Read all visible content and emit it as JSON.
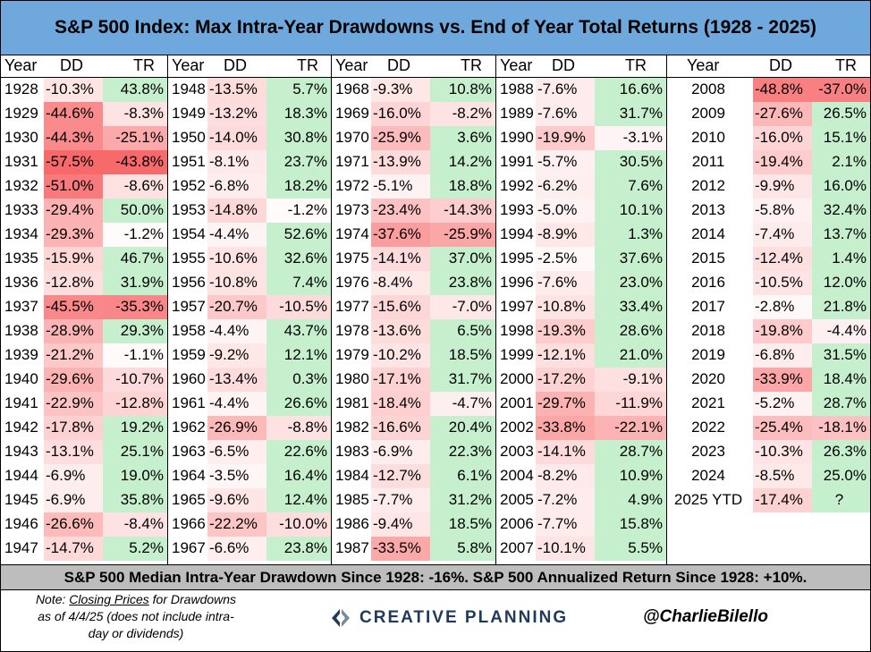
{
  "title": "S&P 500 Index: Max Intra-Year Drawdowns vs. End of Year Total Returns (1928 - 2025)",
  "headers": {
    "year": "Year",
    "dd": "DD",
    "tr": "TR"
  },
  "summary": "S&P 500 Median Intra-Year Drawdown Since 1928: -16%. S&P 500 Annualized Return Since 1928: +10%.",
  "note": {
    "prefix": "Note: ",
    "link": "Closing Prices",
    "line1_rest": " for Drawdowns",
    "line2": "as of 4/4/25 (does not include intra-",
    "line3": "day or dividends)"
  },
  "logo_text": "CREATIVE PLANNING",
  "handle": "@CharlieBilello",
  "colors": {
    "title_bg": "#6fa8dc",
    "footer_bg": "#bdbdbd",
    "negative": "#f8696b",
    "positive": "#63be7b",
    "logo": "#1f3a5c"
  },
  "chart_data": {
    "type": "table",
    "columns": [
      "Year",
      "DD",
      "TR"
    ],
    "rows": [
      {
        "year": "1928",
        "dd": -10.3,
        "tr": 43.8,
        "dd_text": "-10.3%",
        "tr_text": "43.8%"
      },
      {
        "year": "1929",
        "dd": -44.6,
        "tr": -8.3,
        "dd_text": "-44.6%",
        "tr_text": "-8.3%"
      },
      {
        "year": "1930",
        "dd": -44.3,
        "tr": -25.1,
        "dd_text": "-44.3%",
        "tr_text": "-25.1%"
      },
      {
        "year": "1931",
        "dd": -57.5,
        "tr": -43.8,
        "dd_text": "-57.5%",
        "tr_text": "-43.8%"
      },
      {
        "year": "1932",
        "dd": -51.0,
        "tr": -8.6,
        "dd_text": "-51.0%",
        "tr_text": "-8.6%"
      },
      {
        "year": "1933",
        "dd": -29.4,
        "tr": 50.0,
        "dd_text": "-29.4%",
        "tr_text": "50.0%"
      },
      {
        "year": "1934",
        "dd": -29.3,
        "tr": -1.2,
        "dd_text": "-29.3%",
        "tr_text": "-1.2%"
      },
      {
        "year": "1935",
        "dd": -15.9,
        "tr": 46.7,
        "dd_text": "-15.9%",
        "tr_text": "46.7%"
      },
      {
        "year": "1936",
        "dd": -12.8,
        "tr": 31.9,
        "dd_text": "-12.8%",
        "tr_text": "31.9%"
      },
      {
        "year": "1937",
        "dd": -45.5,
        "tr": -35.3,
        "dd_text": "-45.5%",
        "tr_text": "-35.3%"
      },
      {
        "year": "1938",
        "dd": -28.9,
        "tr": 29.3,
        "dd_text": "-28.9%",
        "tr_text": "29.3%"
      },
      {
        "year": "1939",
        "dd": -21.2,
        "tr": -1.1,
        "dd_text": "-21.2%",
        "tr_text": "-1.1%"
      },
      {
        "year": "1940",
        "dd": -29.6,
        "tr": -10.7,
        "dd_text": "-29.6%",
        "tr_text": "-10.7%"
      },
      {
        "year": "1941",
        "dd": -22.9,
        "tr": -12.8,
        "dd_text": "-22.9%",
        "tr_text": "-12.8%"
      },
      {
        "year": "1942",
        "dd": -17.8,
        "tr": 19.2,
        "dd_text": "-17.8%",
        "tr_text": "19.2%"
      },
      {
        "year": "1943",
        "dd": -13.1,
        "tr": 25.1,
        "dd_text": "-13.1%",
        "tr_text": "25.1%"
      },
      {
        "year": "1944",
        "dd": -6.9,
        "tr": 19.0,
        "dd_text": "-6.9%",
        "tr_text": "19.0%"
      },
      {
        "year": "1945",
        "dd": -6.9,
        "tr": 35.8,
        "dd_text": "-6.9%",
        "tr_text": "35.8%"
      },
      {
        "year": "1946",
        "dd": -26.6,
        "tr": -8.4,
        "dd_text": "-26.6%",
        "tr_text": "-8.4%"
      },
      {
        "year": "1947",
        "dd": -14.7,
        "tr": 5.2,
        "dd_text": "-14.7%",
        "tr_text": "5.2%"
      },
      {
        "year": "1948",
        "dd": -13.5,
        "tr": 5.7,
        "dd_text": "-13.5%",
        "tr_text": "5.7%"
      },
      {
        "year": "1949",
        "dd": -13.2,
        "tr": 18.3,
        "dd_text": "-13.2%",
        "tr_text": "18.3%"
      },
      {
        "year": "1950",
        "dd": -14.0,
        "tr": 30.8,
        "dd_text": "-14.0%",
        "tr_text": "30.8%"
      },
      {
        "year": "1951",
        "dd": -8.1,
        "tr": 23.7,
        "dd_text": "-8.1%",
        "tr_text": "23.7%"
      },
      {
        "year": "1952",
        "dd": -6.8,
        "tr": 18.2,
        "dd_text": "-6.8%",
        "tr_text": "18.2%"
      },
      {
        "year": "1953",
        "dd": -14.8,
        "tr": -1.2,
        "dd_text": "-14.8%",
        "tr_text": "-1.2%"
      },
      {
        "year": "1954",
        "dd": -4.4,
        "tr": 52.6,
        "dd_text": "-4.4%",
        "tr_text": "52.6%"
      },
      {
        "year": "1955",
        "dd": -10.6,
        "tr": 32.6,
        "dd_text": "-10.6%",
        "tr_text": "32.6%"
      },
      {
        "year": "1956",
        "dd": -10.8,
        "tr": 7.4,
        "dd_text": "-10.8%",
        "tr_text": "7.4%"
      },
      {
        "year": "1957",
        "dd": -20.7,
        "tr": -10.5,
        "dd_text": "-20.7%",
        "tr_text": "-10.5%"
      },
      {
        "year": "1958",
        "dd": -4.4,
        "tr": 43.7,
        "dd_text": "-4.4%",
        "tr_text": "43.7%"
      },
      {
        "year": "1959",
        "dd": -9.2,
        "tr": 12.1,
        "dd_text": "-9.2%",
        "tr_text": "12.1%"
      },
      {
        "year": "1960",
        "dd": -13.4,
        "tr": 0.3,
        "dd_text": "-13.4%",
        "tr_text": "0.3%"
      },
      {
        "year": "1961",
        "dd": -4.4,
        "tr": 26.6,
        "dd_text": "-4.4%",
        "tr_text": "26.6%"
      },
      {
        "year": "1962",
        "dd": -26.9,
        "tr": -8.8,
        "dd_text": "-26.9%",
        "tr_text": "-8.8%"
      },
      {
        "year": "1963",
        "dd": -6.5,
        "tr": 22.6,
        "dd_text": "-6.5%",
        "tr_text": "22.6%"
      },
      {
        "year": "1964",
        "dd": -3.5,
        "tr": 16.4,
        "dd_text": "-3.5%",
        "tr_text": "16.4%"
      },
      {
        "year": "1965",
        "dd": -9.6,
        "tr": 12.4,
        "dd_text": "-9.6%",
        "tr_text": "12.4%"
      },
      {
        "year": "1966",
        "dd": -22.2,
        "tr": -10.0,
        "dd_text": "-22.2%",
        "tr_text": "-10.0%"
      },
      {
        "year": "1967",
        "dd": -6.6,
        "tr": 23.8,
        "dd_text": "-6.6%",
        "tr_text": "23.8%"
      },
      {
        "year": "1968",
        "dd": -9.3,
        "tr": 10.8,
        "dd_text": "-9.3%",
        "tr_text": "10.8%"
      },
      {
        "year": "1969",
        "dd": -16.0,
        "tr": -8.2,
        "dd_text": "-16.0%",
        "tr_text": "-8.2%"
      },
      {
        "year": "1970",
        "dd": -25.9,
        "tr": 3.6,
        "dd_text": "-25.9%",
        "tr_text": "3.6%"
      },
      {
        "year": "1971",
        "dd": -13.9,
        "tr": 14.2,
        "dd_text": "-13.9%",
        "tr_text": "14.2%"
      },
      {
        "year": "1972",
        "dd": -5.1,
        "tr": 18.8,
        "dd_text": "-5.1%",
        "tr_text": "18.8%"
      },
      {
        "year": "1973",
        "dd": -23.4,
        "tr": -14.3,
        "dd_text": "-23.4%",
        "tr_text": "-14.3%"
      },
      {
        "year": "1974",
        "dd": -37.6,
        "tr": -25.9,
        "dd_text": "-37.6%",
        "tr_text": "-25.9%"
      },
      {
        "year": "1975",
        "dd": -14.1,
        "tr": 37.0,
        "dd_text": "-14.1%",
        "tr_text": "37.0%"
      },
      {
        "year": "1976",
        "dd": -8.4,
        "tr": 23.8,
        "dd_text": "-8.4%",
        "tr_text": "23.8%"
      },
      {
        "year": "1977",
        "dd": -15.6,
        "tr": -7.0,
        "dd_text": "-15.6%",
        "tr_text": "-7.0%"
      },
      {
        "year": "1978",
        "dd": -13.6,
        "tr": 6.5,
        "dd_text": "-13.6%",
        "tr_text": "6.5%"
      },
      {
        "year": "1979",
        "dd": -10.2,
        "tr": 18.5,
        "dd_text": "-10.2%",
        "tr_text": "18.5%"
      },
      {
        "year": "1980",
        "dd": -17.1,
        "tr": 31.7,
        "dd_text": "-17.1%",
        "tr_text": "31.7%"
      },
      {
        "year": "1981",
        "dd": -18.4,
        "tr": -4.7,
        "dd_text": "-18.4%",
        "tr_text": "-4.7%"
      },
      {
        "year": "1982",
        "dd": -16.6,
        "tr": 20.4,
        "dd_text": "-16.6%",
        "tr_text": "20.4%"
      },
      {
        "year": "1983",
        "dd": -6.9,
        "tr": 22.3,
        "dd_text": "-6.9%",
        "tr_text": "22.3%"
      },
      {
        "year": "1984",
        "dd": -12.7,
        "tr": 6.1,
        "dd_text": "-12.7%",
        "tr_text": "6.1%"
      },
      {
        "year": "1985",
        "dd": -7.7,
        "tr": 31.2,
        "dd_text": "-7.7%",
        "tr_text": "31.2%"
      },
      {
        "year": "1986",
        "dd": -9.4,
        "tr": 18.5,
        "dd_text": "-9.4%",
        "tr_text": "18.5%"
      },
      {
        "year": "1987",
        "dd": -33.5,
        "tr": 5.8,
        "dd_text": "-33.5%",
        "tr_text": "5.8%"
      },
      {
        "year": "1988",
        "dd": -7.6,
        "tr": 16.6,
        "dd_text": "-7.6%",
        "tr_text": "16.6%"
      },
      {
        "year": "1989",
        "dd": -7.6,
        "tr": 31.7,
        "dd_text": "-7.6%",
        "tr_text": "31.7%"
      },
      {
        "year": "1990",
        "dd": -19.9,
        "tr": -3.1,
        "dd_text": "-19.9%",
        "tr_text": "-3.1%"
      },
      {
        "year": "1991",
        "dd": -5.7,
        "tr": 30.5,
        "dd_text": "-5.7%",
        "tr_text": "30.5%"
      },
      {
        "year": "1992",
        "dd": -6.2,
        "tr": 7.6,
        "dd_text": "-6.2%",
        "tr_text": "7.6%"
      },
      {
        "year": "1993",
        "dd": -5.0,
        "tr": 10.1,
        "dd_text": "-5.0%",
        "tr_text": "10.1%"
      },
      {
        "year": "1994",
        "dd": -8.9,
        "tr": 1.3,
        "dd_text": "-8.9%",
        "tr_text": "1.3%"
      },
      {
        "year": "1995",
        "dd": -2.5,
        "tr": 37.6,
        "dd_text": "-2.5%",
        "tr_text": "37.6%"
      },
      {
        "year": "1996",
        "dd": -7.6,
        "tr": 23.0,
        "dd_text": "-7.6%",
        "tr_text": "23.0%"
      },
      {
        "year": "1997",
        "dd": -10.8,
        "tr": 33.4,
        "dd_text": "-10.8%",
        "tr_text": "33.4%"
      },
      {
        "year": "1998",
        "dd": -19.3,
        "tr": 28.6,
        "dd_text": "-19.3%",
        "tr_text": "28.6%"
      },
      {
        "year": "1999",
        "dd": -12.1,
        "tr": 21.0,
        "dd_text": "-12.1%",
        "tr_text": "21.0%"
      },
      {
        "year": "2000",
        "dd": -17.2,
        "tr": -9.1,
        "dd_text": "-17.2%",
        "tr_text": "-9.1%"
      },
      {
        "year": "2001",
        "dd": -29.7,
        "tr": -11.9,
        "dd_text": "-29.7%",
        "tr_text": "-11.9%"
      },
      {
        "year": "2002",
        "dd": -33.8,
        "tr": -22.1,
        "dd_text": "-33.8%",
        "tr_text": "-22.1%"
      },
      {
        "year": "2003",
        "dd": -14.1,
        "tr": 28.7,
        "dd_text": "-14.1%",
        "tr_text": "28.7%"
      },
      {
        "year": "2004",
        "dd": -8.2,
        "tr": 10.9,
        "dd_text": "-8.2%",
        "tr_text": "10.9%"
      },
      {
        "year": "2005",
        "dd": -7.2,
        "tr": 4.9,
        "dd_text": "-7.2%",
        "tr_text": "4.9%"
      },
      {
        "year": "2006",
        "dd": -7.7,
        "tr": 15.8,
        "dd_text": "-7.7%",
        "tr_text": "15.8%"
      },
      {
        "year": "2007",
        "dd": -10.1,
        "tr": 5.5,
        "dd_text": "-10.1%",
        "tr_text": "5.5%"
      },
      {
        "year": "2008",
        "dd": -48.8,
        "tr": -37.0,
        "dd_text": "-48.8%",
        "tr_text": "-37.0%"
      },
      {
        "year": "2009",
        "dd": -27.6,
        "tr": 26.5,
        "dd_text": "-27.6%",
        "tr_text": "26.5%"
      },
      {
        "year": "2010",
        "dd": -16.0,
        "tr": 15.1,
        "dd_text": "-16.0%",
        "tr_text": "15.1%"
      },
      {
        "year": "2011",
        "dd": -19.4,
        "tr": 2.1,
        "dd_text": "-19.4%",
        "tr_text": "2.1%"
      },
      {
        "year": "2012",
        "dd": -9.9,
        "tr": 16.0,
        "dd_text": "-9.9%",
        "tr_text": "16.0%"
      },
      {
        "year": "2013",
        "dd": -5.8,
        "tr": 32.4,
        "dd_text": "-5.8%",
        "tr_text": "32.4%"
      },
      {
        "year": "2014",
        "dd": -7.4,
        "tr": 13.7,
        "dd_text": "-7.4%",
        "tr_text": "13.7%"
      },
      {
        "year": "2015",
        "dd": -12.4,
        "tr": 1.4,
        "dd_text": "-12.4%",
        "tr_text": "1.4%"
      },
      {
        "year": "2016",
        "dd": -10.5,
        "tr": 12.0,
        "dd_text": "-10.5%",
        "tr_text": "12.0%"
      },
      {
        "year": "2017",
        "dd": -2.8,
        "tr": 21.8,
        "dd_text": "-2.8%",
        "tr_text": "21.8%"
      },
      {
        "year": "2018",
        "dd": -19.8,
        "tr": -4.4,
        "dd_text": "-19.8%",
        "tr_text": "-4.4%"
      },
      {
        "year": "2019",
        "dd": -6.8,
        "tr": 31.5,
        "dd_text": "-6.8%",
        "tr_text": "31.5%"
      },
      {
        "year": "2020",
        "dd": -33.9,
        "tr": 18.4,
        "dd_text": "-33.9%",
        "tr_text": "18.4%"
      },
      {
        "year": "2021",
        "dd": -5.2,
        "tr": 28.7,
        "dd_text": "-5.2%",
        "tr_text": "28.7%"
      },
      {
        "year": "2022",
        "dd": -25.4,
        "tr": -18.1,
        "dd_text": "-25.4%",
        "tr_text": "-18.1%"
      },
      {
        "year": "2023",
        "dd": -10.3,
        "tr": 26.3,
        "dd_text": "-10.3%",
        "tr_text": "26.3%"
      },
      {
        "year": "2024",
        "dd": -8.5,
        "tr": 25.0,
        "dd_text": "-8.5%",
        "tr_text": "25.0%"
      },
      {
        "year": "2025 YTD",
        "dd": -17.4,
        "tr": null,
        "dd_text": "-17.4%",
        "tr_text": "?"
      }
    ]
  }
}
